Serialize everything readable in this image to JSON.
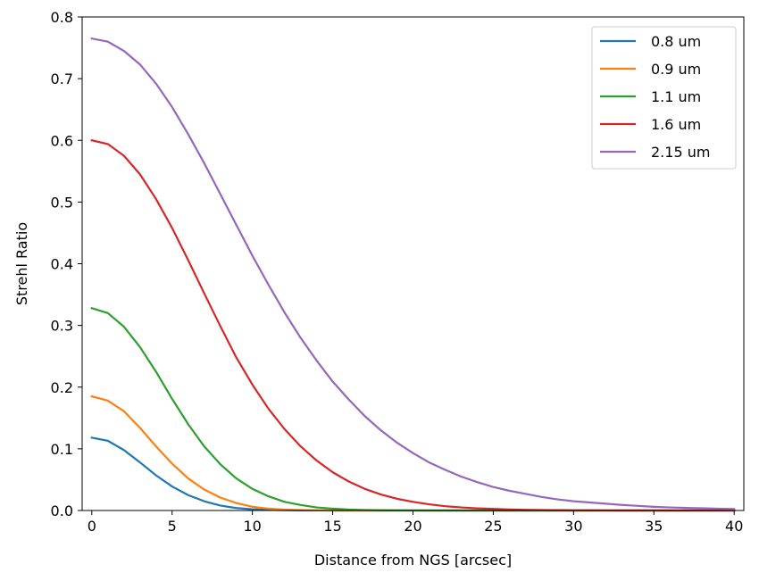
{
  "chart_data": {
    "type": "line",
    "title": "",
    "xlabel": "Distance from NGS [arcsec]",
    "ylabel": "Strehl Ratio",
    "xlim": [
      -0.6,
      40.6
    ],
    "ylim": [
      0,
      0.8
    ],
    "xticks": [
      0,
      5,
      10,
      15,
      20,
      25,
      30,
      35,
      40
    ],
    "yticks": [
      0.0,
      0.1,
      0.2,
      0.3,
      0.4,
      0.5,
      0.6,
      0.7,
      0.8
    ],
    "xtick_labels": [
      "0",
      "5",
      "10",
      "15",
      "20",
      "25",
      "30",
      "35",
      "40"
    ],
    "ytick_labels": [
      "0.0",
      "0.1",
      "0.2",
      "0.3",
      "0.4",
      "0.5",
      "0.6",
      "0.7",
      "0.8"
    ],
    "grid": false,
    "legend_position": "top-right",
    "x": [
      0,
      1,
      2,
      3,
      4,
      5,
      6,
      7,
      8,
      9,
      10,
      11,
      12,
      13,
      14,
      15,
      16,
      17,
      18,
      19,
      20,
      21,
      22,
      23,
      24,
      25,
      26,
      27,
      28,
      29,
      30,
      31,
      32,
      33,
      34,
      35,
      36,
      37,
      38,
      39,
      40
    ],
    "series": [
      {
        "name": "0.8 um",
        "color": "#1f77b4",
        "values": [
          0.118,
          0.113,
          0.098,
          0.078,
          0.057,
          0.039,
          0.025,
          0.015,
          0.008,
          0.004,
          0.002,
          0.001,
          0.0005,
          0.0002,
          0.0001,
          0,
          0,
          0,
          0,
          0,
          0,
          0,
          0,
          0,
          0,
          0,
          0,
          0,
          0,
          0,
          0,
          0,
          0,
          0,
          0,
          0,
          0,
          0,
          0,
          0,
          0
        ]
      },
      {
        "name": "0.9 um",
        "color": "#ff7f0e",
        "values": [
          0.185,
          0.178,
          0.161,
          0.134,
          0.104,
          0.076,
          0.052,
          0.034,
          0.021,
          0.012,
          0.006,
          0.003,
          0.0015,
          0.0007,
          0.0003,
          0.0001,
          0,
          0,
          0,
          0,
          0,
          0,
          0,
          0,
          0,
          0,
          0,
          0,
          0,
          0,
          0,
          0,
          0,
          0,
          0,
          0,
          0,
          0,
          0,
          0,
          0
        ]
      },
      {
        "name": "1.1 um",
        "color": "#2ca02c",
        "values": [
          0.328,
          0.32,
          0.298,
          0.265,
          0.225,
          0.181,
          0.14,
          0.104,
          0.075,
          0.052,
          0.035,
          0.023,
          0.014,
          0.009,
          0.005,
          0.003,
          0.0015,
          0.0008,
          0.0004,
          0.0002,
          0.0001,
          0,
          0,
          0,
          0,
          0,
          0,
          0,
          0,
          0,
          0,
          0,
          0,
          0,
          0,
          0,
          0,
          0,
          0,
          0,
          0
        ]
      },
      {
        "name": "1.6 um",
        "color": "#d62728",
        "values": [
          0.6,
          0.594,
          0.575,
          0.545,
          0.505,
          0.458,
          0.406,
          0.352,
          0.299,
          0.248,
          0.204,
          0.165,
          0.132,
          0.104,
          0.081,
          0.062,
          0.047,
          0.035,
          0.026,
          0.019,
          0.014,
          0.01,
          0.007,
          0.005,
          0.0035,
          0.0025,
          0.0017,
          0.0012,
          0.0008,
          0.0005,
          0.0003,
          0.0002,
          0.0001,
          0,
          0,
          0,
          0,
          0,
          0,
          0,
          0
        ]
      },
      {
        "name": "2.15 um",
        "color": "#9467bd",
        "values": [
          0.765,
          0.76,
          0.745,
          0.723,
          0.692,
          0.654,
          0.61,
          0.563,
          0.513,
          0.463,
          0.413,
          0.366,
          0.321,
          0.28,
          0.243,
          0.209,
          0.18,
          0.153,
          0.13,
          0.11,
          0.093,
          0.078,
          0.066,
          0.055,
          0.046,
          0.038,
          0.032,
          0.027,
          0.022,
          0.018,
          0.015,
          0.013,
          0.011,
          0.009,
          0.0075,
          0.006,
          0.005,
          0.0042,
          0.0036,
          0.003,
          0.0025
        ]
      }
    ]
  }
}
